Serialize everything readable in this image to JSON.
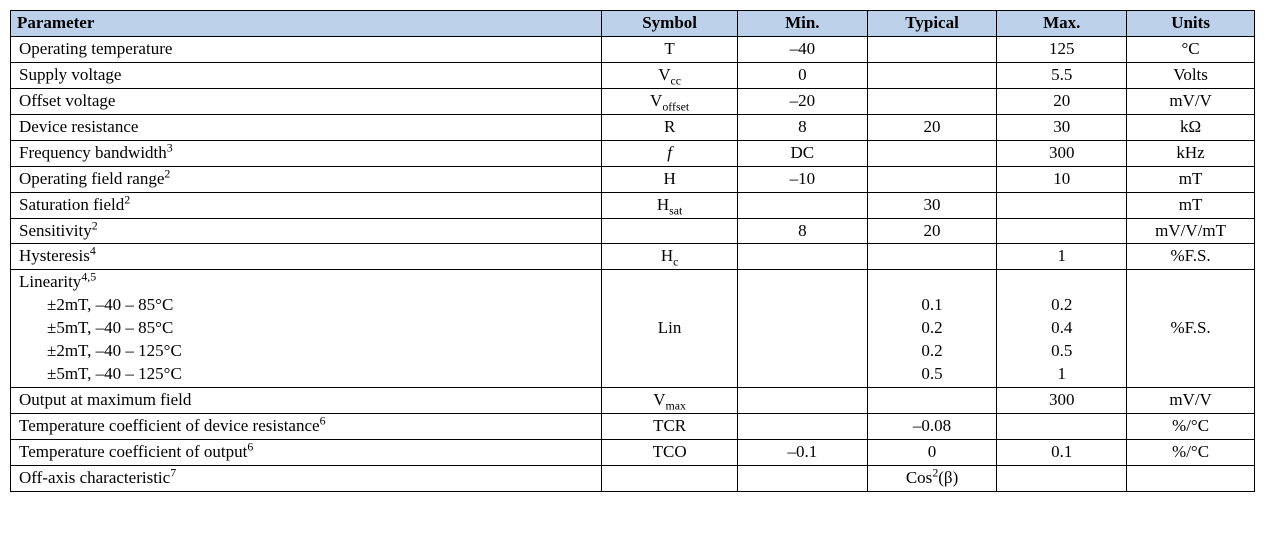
{
  "header": {
    "parameter": "Parameter",
    "symbol": "Symbol",
    "min": "Min.",
    "typical": "Typical",
    "max": "Max.",
    "units": "Units"
  },
  "rows": {
    "r00": {
      "param": "Operating temperature",
      "symbol": "T",
      "min": "–40",
      "typ": "",
      "max": "125",
      "units": "°C"
    },
    "r01": {
      "param": "Supply voltage",
      "symbol_main": "V",
      "symbol_sub": "cc",
      "min": "0",
      "typ": "",
      "max": "5.5",
      "units": "Volts"
    },
    "r02": {
      "param": "Offset voltage",
      "symbol_main": "V",
      "symbol_sub": "offset",
      "min": "–20",
      "typ": "",
      "max": "20",
      "units": "mV/V"
    },
    "r03": {
      "param": "Device resistance",
      "symbol": "R",
      "min": "8",
      "typ": "20",
      "max": "30",
      "units": "kΩ"
    },
    "r04": {
      "param": "Frequency bandwidth",
      "sup": "3",
      "symbol": "f",
      "min": "DC",
      "typ": "",
      "max": "300",
      "units": "kHz"
    },
    "r05": {
      "param": "Operating field range",
      "sup": "2",
      "symbol": "H",
      "min": "–10",
      "typ": "",
      "max": "10",
      "units": "mT"
    },
    "r06": {
      "param": "Saturation field",
      "sup": "2",
      "symbol_main": "H",
      "symbol_sub": "sat",
      "min": "",
      "typ": "30",
      "max": "",
      "units": "mT"
    },
    "r07": {
      "param": "Sensitivity",
      "sup": "2",
      "symbol": "",
      "min": "8",
      "typ": "20",
      "max": "",
      "units": "mV/V/mT"
    },
    "r08": {
      "param": "Hysteresis",
      "sup": "4",
      "symbol_main": "H",
      "symbol_sub": "c",
      "min": "",
      "typ": "",
      "max": "1",
      "units": "%F.S."
    },
    "r09": {
      "param": "Linearity",
      "sup": "4,5",
      "sub1": "±2mT, –40 – 85°C",
      "sub2": "±5mT, –40 – 85°C",
      "sub3": "±2mT, –40 – 125°C",
      "sub4": "±5mT, –40 – 125°C",
      "symbol": "Lin",
      "typ1": "0.1",
      "typ2": "0.2",
      "typ3": "0.2",
      "typ4": "0.5",
      "max1": "0.2",
      "max2": "0.4",
      "max3": "0.5",
      "max4": "1",
      "units": "%F.S."
    },
    "r10": {
      "param": "Output at maximum field",
      "symbol_main": "V",
      "symbol_sub": "max",
      "min": "",
      "typ": "",
      "max": "300",
      "units": "mV/V"
    },
    "r11": {
      "param": "Temperature coefficient of device resistance",
      "sup": "6",
      "symbol": "TCR",
      "min": "",
      "typ": "–0.08",
      "max": "",
      "units": "%/°C"
    },
    "r12": {
      "param": "Temperature coefficient of output",
      "sup": "6",
      "symbol": "TCO",
      "min": "–0.1",
      "typ": "0",
      "max": "0.1",
      "units": "%/°C"
    },
    "r13": {
      "param": "Off-axis characteristic",
      "sup": "7",
      "symbol": "",
      "min": "",
      "typ_pre": "Cos",
      "typ_sup": "2",
      "typ_post": "(β)",
      "max": "",
      "units": ""
    }
  }
}
